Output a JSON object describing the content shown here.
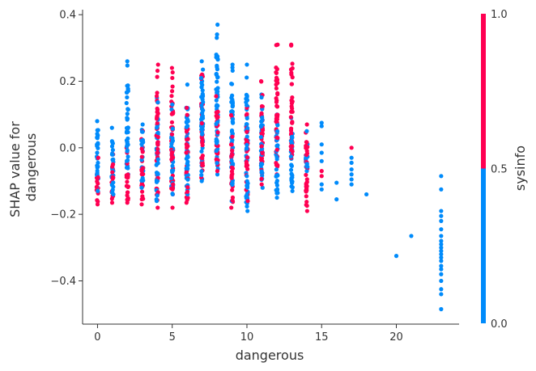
{
  "chart_data": {
    "type": "scatter",
    "title": "",
    "xlabel": "dangerous",
    "ylabel_lines": [
      "SHAP value for",
      "dangerous"
    ],
    "xlim": [
      -1,
      24.2
    ],
    "ylim": [
      -0.53,
      0.415
    ],
    "x_ticks": [
      0,
      5,
      10,
      15,
      20
    ],
    "y_ticks": [
      -0.4,
      -0.2,
      0.0,
      0.2,
      0.4
    ],
    "y_tick_labels": [
      "−0.4",
      "−0.2",
      "0.0",
      "0.2",
      "0.4"
    ],
    "x_tick_labels": [
      "0",
      "5",
      "10",
      "15",
      "20"
    ],
    "colorbar": {
      "label": "sysinfo",
      "ticks": [
        0.0,
        0.5,
        1.0
      ],
      "tick_labels": [
        "0.0",
        "0.5",
        "1.0"
      ],
      "low_color": "#008bfb",
      "high_color": "#ff0052"
    },
    "grid": false,
    "legend": "none",
    "columns": [
      {
        "x": 0,
        "blue": [
          -0.13,
          0.08
        ],
        "red": [
          -0.17,
          -0.03
        ]
      },
      {
        "x": 1,
        "blue": [
          -0.14,
          0.06
        ],
        "red": [
          -0.165,
          -0.02
        ]
      },
      {
        "x": 2,
        "blue": [
          -0.08,
          0.26
        ],
        "red": [
          -0.165,
          0.0
        ]
      },
      {
        "x": 3,
        "blue": [
          -0.12,
          0.07
        ],
        "red": [
          -0.17,
          0.05
        ]
      },
      {
        "x": 4,
        "blue": [
          -0.16,
          0.15
        ],
        "red": [
          -0.18,
          0.25
        ]
      },
      {
        "x": 5,
        "blue": [
          -0.14,
          0.13
        ],
        "red": [
          -0.18,
          0.24
        ]
      },
      {
        "x": 6,
        "blue": [
          -0.14,
          0.19
        ],
        "red": [
          -0.165,
          0.12
        ]
      },
      {
        "x": 7,
        "blue": [
          -0.1,
          0.26
        ],
        "red": [
          -0.09,
          0.22
        ]
      },
      {
        "x": 8,
        "blue": [
          -0.08,
          0.37
        ],
        "red": [
          -0.07,
          0.16
        ]
      },
      {
        "x": 9,
        "blue": [
          -0.16,
          0.25
        ],
        "red": [
          -0.18,
          0.1
        ]
      },
      {
        "x": 10,
        "blue": [
          -0.19,
          0.25
        ],
        "red": [
          -0.16,
          0.12
        ]
      },
      {
        "x": 11,
        "blue": [
          -0.12,
          0.16
        ],
        "red": [
          -0.11,
          0.2
        ]
      },
      {
        "x": 12,
        "blue": [
          -0.15,
          0.1
        ],
        "red": [
          -0.08,
          0.31
        ]
      },
      {
        "x": 13,
        "blue": [
          -0.13,
          0.09
        ],
        "red": [
          -0.03,
          0.31
        ]
      },
      {
        "x": 14,
        "blue": [
          -0.07,
          0.05
        ],
        "red": [
          -0.19,
          0.07
        ]
      }
    ],
    "sparse_points": [
      {
        "x": 15,
        "y": 0.075,
        "c": "blue"
      },
      {
        "x": 15,
        "y": 0.065,
        "c": "blue"
      },
      {
        "x": 15,
        "y": 0.01,
        "c": "blue"
      },
      {
        "x": 15,
        "y": -0.015,
        "c": "blue"
      },
      {
        "x": 15,
        "y": -0.04,
        "c": "blue"
      },
      {
        "x": 15,
        "y": -0.07,
        "c": "red"
      },
      {
        "x": 15,
        "y": -0.085,
        "c": "red"
      },
      {
        "x": 15,
        "y": -0.11,
        "c": "blue"
      },
      {
        "x": 15,
        "y": -0.125,
        "c": "blue"
      },
      {
        "x": 16,
        "y": -0.105,
        "c": "blue"
      },
      {
        "x": 16,
        "y": -0.155,
        "c": "blue"
      },
      {
        "x": 17,
        "y": 0.0,
        "c": "red"
      },
      {
        "x": 17,
        "y": -0.03,
        "c": "blue"
      },
      {
        "x": 17,
        "y": -0.045,
        "c": "blue"
      },
      {
        "x": 17,
        "y": -0.065,
        "c": "blue"
      },
      {
        "x": 17,
        "y": -0.08,
        "c": "blue"
      },
      {
        "x": 17,
        "y": -0.095,
        "c": "blue"
      },
      {
        "x": 17,
        "y": -0.11,
        "c": "blue"
      },
      {
        "x": 18,
        "y": -0.14,
        "c": "blue"
      },
      {
        "x": 20,
        "y": -0.325,
        "c": "blue"
      },
      {
        "x": 21,
        "y": -0.265,
        "c": "blue"
      },
      {
        "x": 23,
        "y": -0.085,
        "c": "blue"
      },
      {
        "x": 23,
        "y": -0.125,
        "c": "blue"
      },
      {
        "x": 23,
        "y": -0.19,
        "c": "blue"
      },
      {
        "x": 23,
        "y": -0.205,
        "c": "blue"
      },
      {
        "x": 23,
        "y": -0.22,
        "c": "blue"
      },
      {
        "x": 23,
        "y": -0.245,
        "c": "blue"
      },
      {
        "x": 23,
        "y": -0.265,
        "c": "blue"
      },
      {
        "x": 23,
        "y": -0.28,
        "c": "blue"
      },
      {
        "x": 23,
        "y": -0.29,
        "c": "blue"
      },
      {
        "x": 23,
        "y": -0.3,
        "c": "blue"
      },
      {
        "x": 23,
        "y": -0.31,
        "c": "blue"
      },
      {
        "x": 23,
        "y": -0.32,
        "c": "blue"
      },
      {
        "x": 23,
        "y": -0.33,
        "c": "blue"
      },
      {
        "x": 23,
        "y": -0.34,
        "c": "blue"
      },
      {
        "x": 23,
        "y": -0.355,
        "c": "blue"
      },
      {
        "x": 23,
        "y": -0.365,
        "c": "blue"
      },
      {
        "x": 23,
        "y": -0.38,
        "c": "blue"
      },
      {
        "x": 23,
        "y": -0.4,
        "c": "blue"
      },
      {
        "x": 23,
        "y": -0.425,
        "c": "blue"
      },
      {
        "x": 23,
        "y": -0.44,
        "c": "blue"
      },
      {
        "x": 23,
        "y": -0.485,
        "c": "blue"
      }
    ]
  }
}
